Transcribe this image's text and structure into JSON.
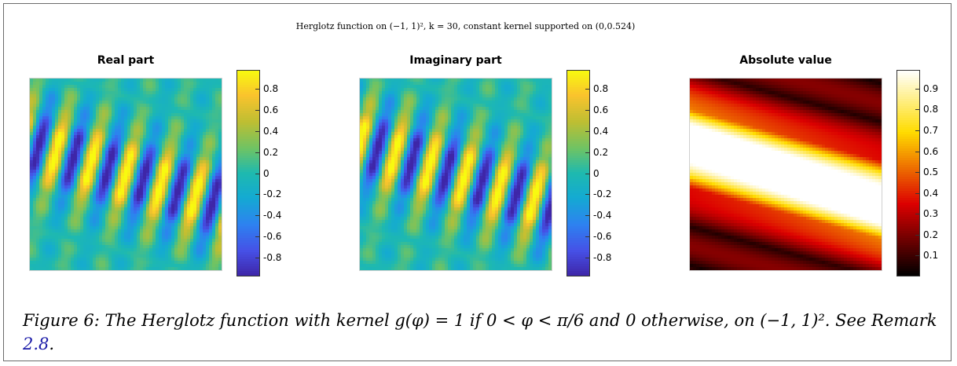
{
  "figure": {
    "suptitle": "Herglotz function on (−1, 1)², k = 30, constant kernel supported on (0,0.524)",
    "panels": [
      {
        "title": "Real part",
        "cmap": "parula",
        "ticks": [
          "0.8",
          "0.6",
          "0.4",
          "0.2",
          "0",
          "-0.2",
          "-0.4",
          "-0.6",
          "-0.8"
        ],
        "clim": [
          -0.98,
          0.98
        ]
      },
      {
        "title": "Imaginary part",
        "cmap": "parula",
        "ticks": [
          "0.8",
          "0.6",
          "0.4",
          "0.2",
          "0",
          "-0.2",
          "-0.4",
          "-0.6",
          "-0.8"
        ],
        "clim": [
          -0.98,
          0.98
        ]
      },
      {
        "title": "Absolute value",
        "cmap": "hot",
        "ticks": [
          "0.9",
          "0.8",
          "0.7",
          "0.6",
          "0.5",
          "0.4",
          "0.3",
          "0.2",
          "0.1"
        ],
        "clim": [
          0.0,
          0.99
        ]
      }
    ]
  },
  "caption": {
    "prefix": "Figure 6: The Herglotz function with kernel ",
    "expr1": "g(φ) = 1",
    "mid1": " if ",
    "expr2": "0 < φ < π/6",
    "mid2": " and 0 otherwise, on ",
    "expr3": "(−1, 1)²",
    "mid3": ". See Remark ",
    "ref": "2.8",
    "suffix": "."
  }
}
